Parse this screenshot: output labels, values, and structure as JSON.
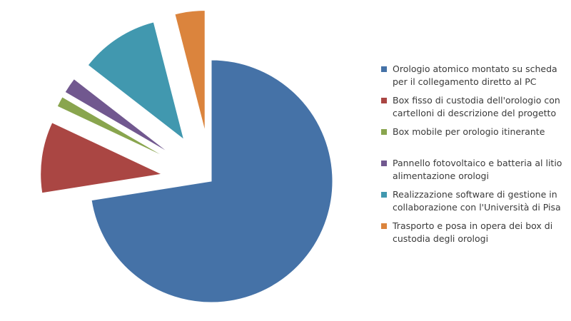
{
  "chart_data": {
    "type": "pie",
    "exploded": true,
    "start_angle": "12 o'clock",
    "direction": "clockwise",
    "legend_position": "right",
    "slices": [
      {
        "label": "Orologio atomico montato su scheda per il collegamento diretto al PC",
        "value": 72.5,
        "color": "#4572A7"
      },
      {
        "label": "Box fisso di custodia dell'orologio con cartelloni di descrizione del progetto",
        "value": 9.5,
        "color": "#AA4643"
      },
      {
        "label": "Box mobile per orologio itinerante",
        "value": 1.4,
        "color": "#89A54E"
      },
      {
        "label": "Pannello fotovoltaico e batteria al litio alimentazione orologi",
        "value": 2.1,
        "color": "#71588F"
      },
      {
        "label": "Realizzazione software di gestione in collaborazione con l'Università di Pisa",
        "value": 10.5,
        "color": "#4198AF"
      },
      {
        "label": "Trasporto e posa in opera dei box di custodia degli orologi",
        "value": 4.0,
        "color": "#DB843D"
      }
    ]
  }
}
